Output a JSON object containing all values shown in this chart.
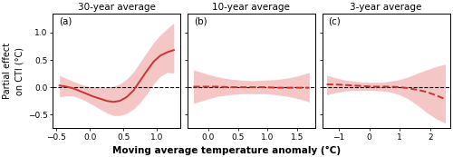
{
  "titles": [
    "30-year average",
    "10-year average",
    "3-year average"
  ],
  "labels": [
    "(a)",
    "(b)",
    "(c)"
  ],
  "line_color": "#cc3333",
  "shade_color": "#f5c6c6",
  "dashed_color": "#111111",
  "ylabel": "Partial effect\non CTI (°C)",
  "xlabel": "Moving average temperature anomaly (°C)",
  "panels": [
    {
      "xlim": [
        -0.55,
        1.35
      ],
      "ylim": [
        -0.75,
        1.35
      ],
      "xticks": [
        -0.5,
        0.0,
        0.5,
        1.0
      ],
      "yticks": [
        -0.5,
        0.0,
        0.5,
        1.0
      ],
      "x": [
        -0.45,
        -0.35,
        -0.25,
        -0.15,
        -0.05,
        0.05,
        0.15,
        0.25,
        0.35,
        0.45,
        0.55,
        0.65,
        0.75,
        0.85,
        0.95,
        1.05,
        1.15,
        1.25
      ],
      "y": [
        0.03,
        0.01,
        -0.02,
        -0.07,
        -0.12,
        -0.17,
        -0.21,
        -0.25,
        -0.27,
        -0.25,
        -0.18,
        -0.06,
        0.12,
        0.3,
        0.47,
        0.58,
        0.64,
        0.68
      ],
      "y_upper": [
        0.22,
        0.16,
        0.11,
        0.06,
        0.02,
        0.0,
        -0.01,
        -0.01,
        0.01,
        0.06,
        0.15,
        0.28,
        0.46,
        0.64,
        0.82,
        0.96,
        1.07,
        1.18
      ],
      "y_lower": [
        -0.18,
        -0.16,
        -0.16,
        -0.2,
        -0.26,
        -0.33,
        -0.4,
        -0.47,
        -0.52,
        -0.52,
        -0.48,
        -0.4,
        -0.28,
        -0.12,
        0.06,
        0.2,
        0.27,
        0.26
      ],
      "solid": true
    },
    {
      "xlim": [
        -0.35,
        1.8
      ],
      "ylim": [
        -0.75,
        1.35
      ],
      "xticks": [
        0.0,
        0.5,
        1.0,
        1.5
      ],
      "yticks": [
        -0.5,
        0.0,
        0.5,
        1.0
      ],
      "x": [
        -0.25,
        -0.05,
        0.15,
        0.35,
        0.55,
        0.75,
        0.95,
        1.15,
        1.35,
        1.55,
        1.7
      ],
      "y": [
        0.01,
        0.01,
        0.01,
        0.0,
        0.0,
        0.0,
        0.0,
        -0.01,
        -0.01,
        -0.01,
        -0.01
      ],
      "y_upper": [
        0.32,
        0.25,
        0.19,
        0.15,
        0.13,
        0.12,
        0.13,
        0.14,
        0.17,
        0.22,
        0.27
      ],
      "y_lower": [
        -0.3,
        -0.23,
        -0.17,
        -0.14,
        -0.12,
        -0.12,
        -0.12,
        -0.14,
        -0.17,
        -0.22,
        -0.27
      ],
      "solid": false
    },
    {
      "xlim": [
        -1.55,
        2.65
      ],
      "ylim": [
        -0.75,
        1.35
      ],
      "xticks": [
        -1,
        0,
        1,
        2
      ],
      "yticks": [
        -0.5,
        0.0,
        0.5,
        1.0
      ],
      "x": [
        -1.4,
        -1.1,
        -0.8,
        -0.5,
        -0.2,
        0.1,
        0.4,
        0.7,
        1.0,
        1.3,
        1.6,
        1.9,
        2.2,
        2.5
      ],
      "y": [
        0.05,
        0.05,
        0.04,
        0.03,
        0.02,
        0.01,
        0.01,
        0.01,
        0.0,
        -0.02,
        -0.05,
        -0.09,
        -0.15,
        -0.22
      ],
      "y_upper": [
        0.22,
        0.17,
        0.13,
        0.11,
        0.09,
        0.09,
        0.09,
        0.11,
        0.14,
        0.19,
        0.26,
        0.32,
        0.38,
        0.42
      ],
      "y_lower": [
        -0.14,
        -0.1,
        -0.07,
        -0.06,
        -0.06,
        -0.06,
        -0.07,
        -0.09,
        -0.14,
        -0.22,
        -0.34,
        -0.47,
        -0.58,
        -0.66
      ],
      "solid": false
    }
  ]
}
